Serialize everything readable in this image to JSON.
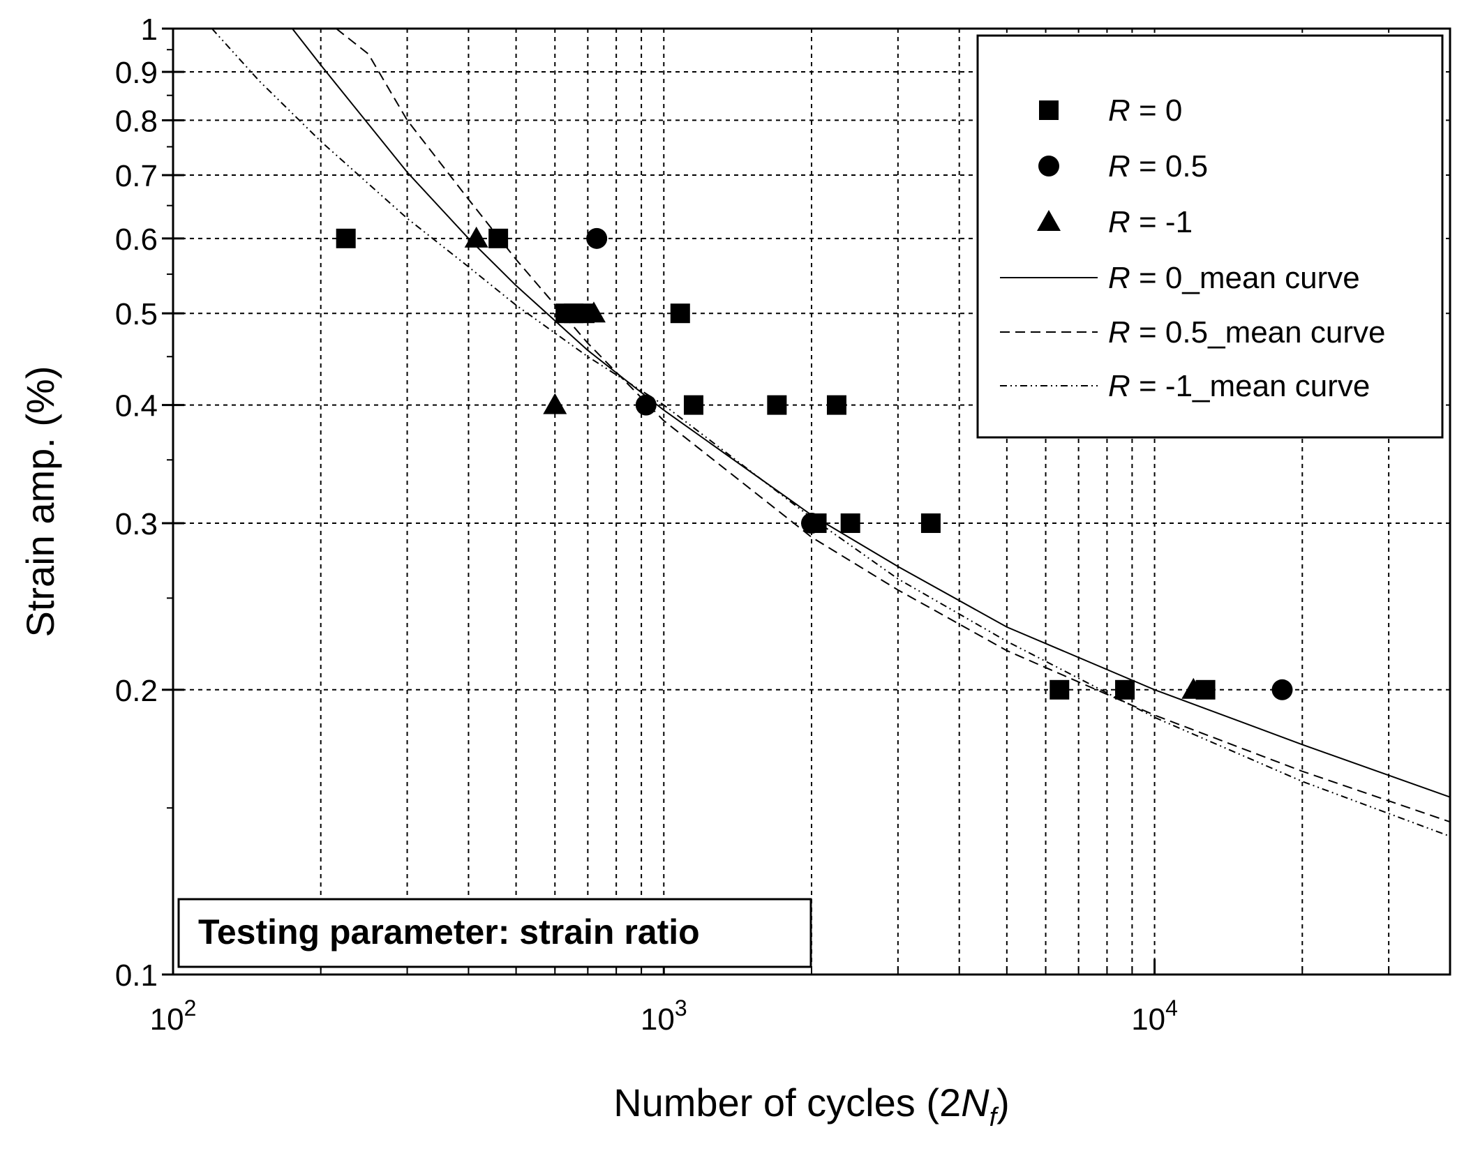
{
  "chart_data": {
    "type": "scatter",
    "title": "",
    "xlabel_parts": [
      "Number of cycles (2",
      "N",
      "f",
      ")"
    ],
    "ylabel": "Strain amp. (%)",
    "xscale": "log",
    "yscale": "log",
    "xlim": [
      100,
      40000
    ],
    "ylim": [
      0.1,
      1.0
    ],
    "grid": true,
    "x_major_ticks": [
      {
        "value": 100,
        "base": "10",
        "exp": "2"
      },
      {
        "value": 1000,
        "base": "10",
        "exp": "3"
      },
      {
        "value": 10000,
        "base": "10",
        "exp": "4"
      }
    ],
    "x_minor_ticks": [
      200,
      300,
      400,
      500,
      600,
      700,
      800,
      900,
      2000,
      3000,
      4000,
      5000,
      6000,
      7000,
      8000,
      9000,
      20000,
      30000
    ],
    "y_ticks": [
      {
        "value": 0.1,
        "label": "0.1"
      },
      {
        "value": 0.2,
        "label": "0.2"
      },
      {
        "value": 0.3,
        "label": "0.3"
      },
      {
        "value": 0.4,
        "label": "0.4"
      },
      {
        "value": 0.5,
        "label": "0.5"
      },
      {
        "value": 0.6,
        "label": "0.6"
      },
      {
        "value": 0.7,
        "label": "0.7"
      },
      {
        "value": 0.8,
        "label": "0.8"
      },
      {
        "value": 0.9,
        "label": "0.9"
      },
      {
        "value": 1.0,
        "label": "1"
      }
    ],
    "y_minor_ticks": [
      0.15,
      0.25,
      0.35,
      0.45,
      0.55,
      0.65,
      0.75,
      0.85,
      0.95
    ],
    "series": [
      {
        "name": "R = 0",
        "r_value": "0",
        "marker": "square",
        "points": [
          [
            225,
            0.6
          ],
          [
            460,
            0.6
          ],
          [
            630,
            0.5
          ],
          [
            655,
            0.5
          ],
          [
            690,
            0.5
          ],
          [
            1080,
            0.5
          ],
          [
            1150,
            0.4
          ],
          [
            1700,
            0.4
          ],
          [
            2250,
            0.4
          ],
          [
            2050,
            0.3
          ],
          [
            2400,
            0.3
          ],
          [
            3500,
            0.3
          ],
          [
            6400,
            0.2
          ],
          [
            8700,
            0.2
          ],
          [
            12700,
            0.2
          ]
        ]
      },
      {
        "name": "R = 0.5",
        "r_value": "0.5",
        "marker": "circle",
        "points": [
          [
            730,
            0.6
          ],
          [
            920,
            0.4
          ],
          [
            2000,
            0.3
          ],
          [
            18200,
            0.2
          ]
        ]
      },
      {
        "name": "R = -1",
        "r_value": "-1",
        "marker": "triangle",
        "points": [
          [
            415,
            0.6
          ],
          [
            600,
            0.4
          ],
          [
            720,
            0.5
          ],
          [
            12000,
            0.2
          ]
        ]
      },
      {
        "name": "R = 0_mean curve",
        "r_value": "0",
        "suffix": "_mean curve",
        "line": "solid",
        "x": [
          175,
          200,
          300,
          400,
          500,
          700,
          1000,
          2000,
          3000,
          5000,
          10000,
          20000,
          40000
        ],
        "y": [
          1.0,
          0.915,
          0.705,
          0.6,
          0.535,
          0.457,
          0.395,
          0.306,
          0.27,
          0.233,
          0.2,
          0.175,
          0.154
        ]
      },
      {
        "name": "R = 0.5_mean curve",
        "r_value": "0.5",
        "suffix": "_mean curve",
        "line": "dashed",
        "x": [
          215,
          250,
          300,
          400,
          500,
          700,
          1000,
          2000,
          3000,
          5000,
          10000,
          20000,
          40000
        ],
        "y": [
          1.0,
          0.94,
          0.8,
          0.66,
          0.57,
          0.465,
          0.385,
          0.29,
          0.255,
          0.22,
          0.188,
          0.164,
          0.145
        ]
      },
      {
        "name": "R = -1_mean curve",
        "r_value": "-1",
        "suffix": "_mean curve",
        "line": "dashdot",
        "x": [
          120,
          150,
          200,
          300,
          400,
          500,
          700,
          1000,
          2000,
          3000,
          5000,
          10000,
          20000,
          40000
        ],
        "y": [
          1.0,
          0.88,
          0.76,
          0.63,
          0.56,
          0.51,
          0.45,
          0.4,
          0.304,
          0.262,
          0.225,
          0.187,
          0.16,
          0.14
        ]
      }
    ],
    "legend_position": "top-right",
    "annotation": "Testing parameter: strain ratio"
  }
}
